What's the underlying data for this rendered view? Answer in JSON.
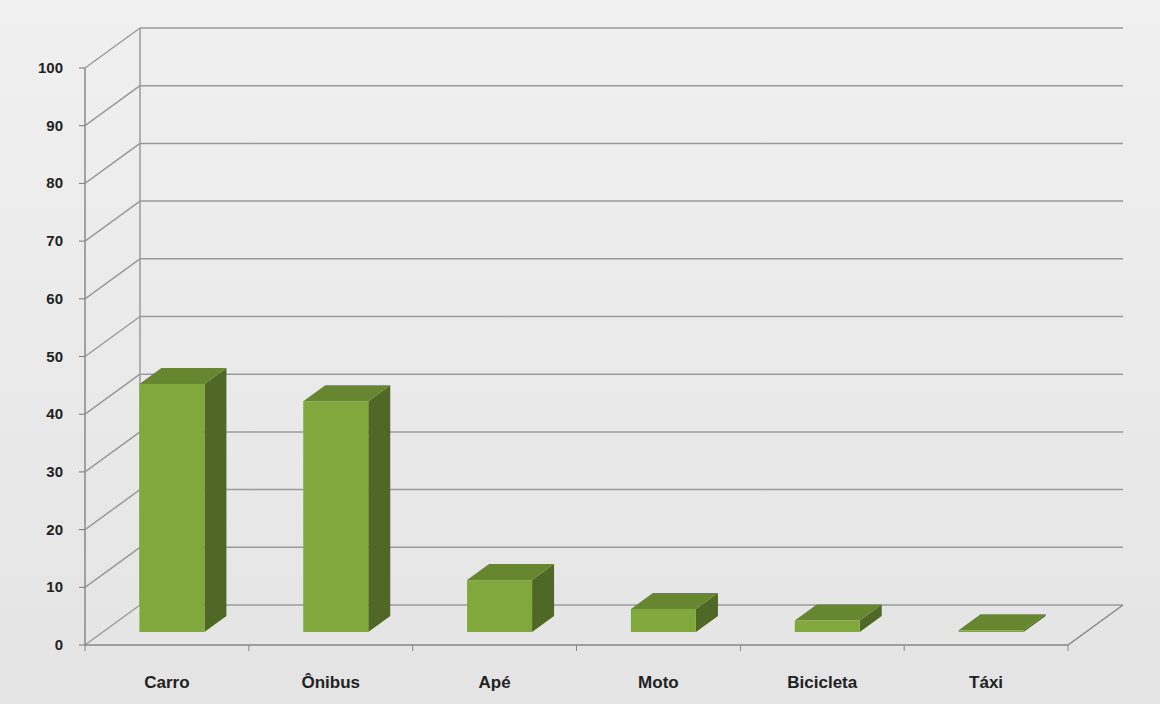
{
  "chart_data": {
    "type": "bar",
    "categories": [
      "Carro",
      "Ônibus",
      "Apé",
      "Moto",
      "Bicicleta",
      "Táxi"
    ],
    "values": [
      43,
      40,
      9,
      4,
      2,
      0.3
    ],
    "color": "#80a83c",
    "ylim": [
      0,
      100
    ],
    "yticks": [
      0,
      10,
      20,
      30,
      40,
      50,
      60,
      70,
      80,
      90,
      100
    ],
    "grid": true
  }
}
